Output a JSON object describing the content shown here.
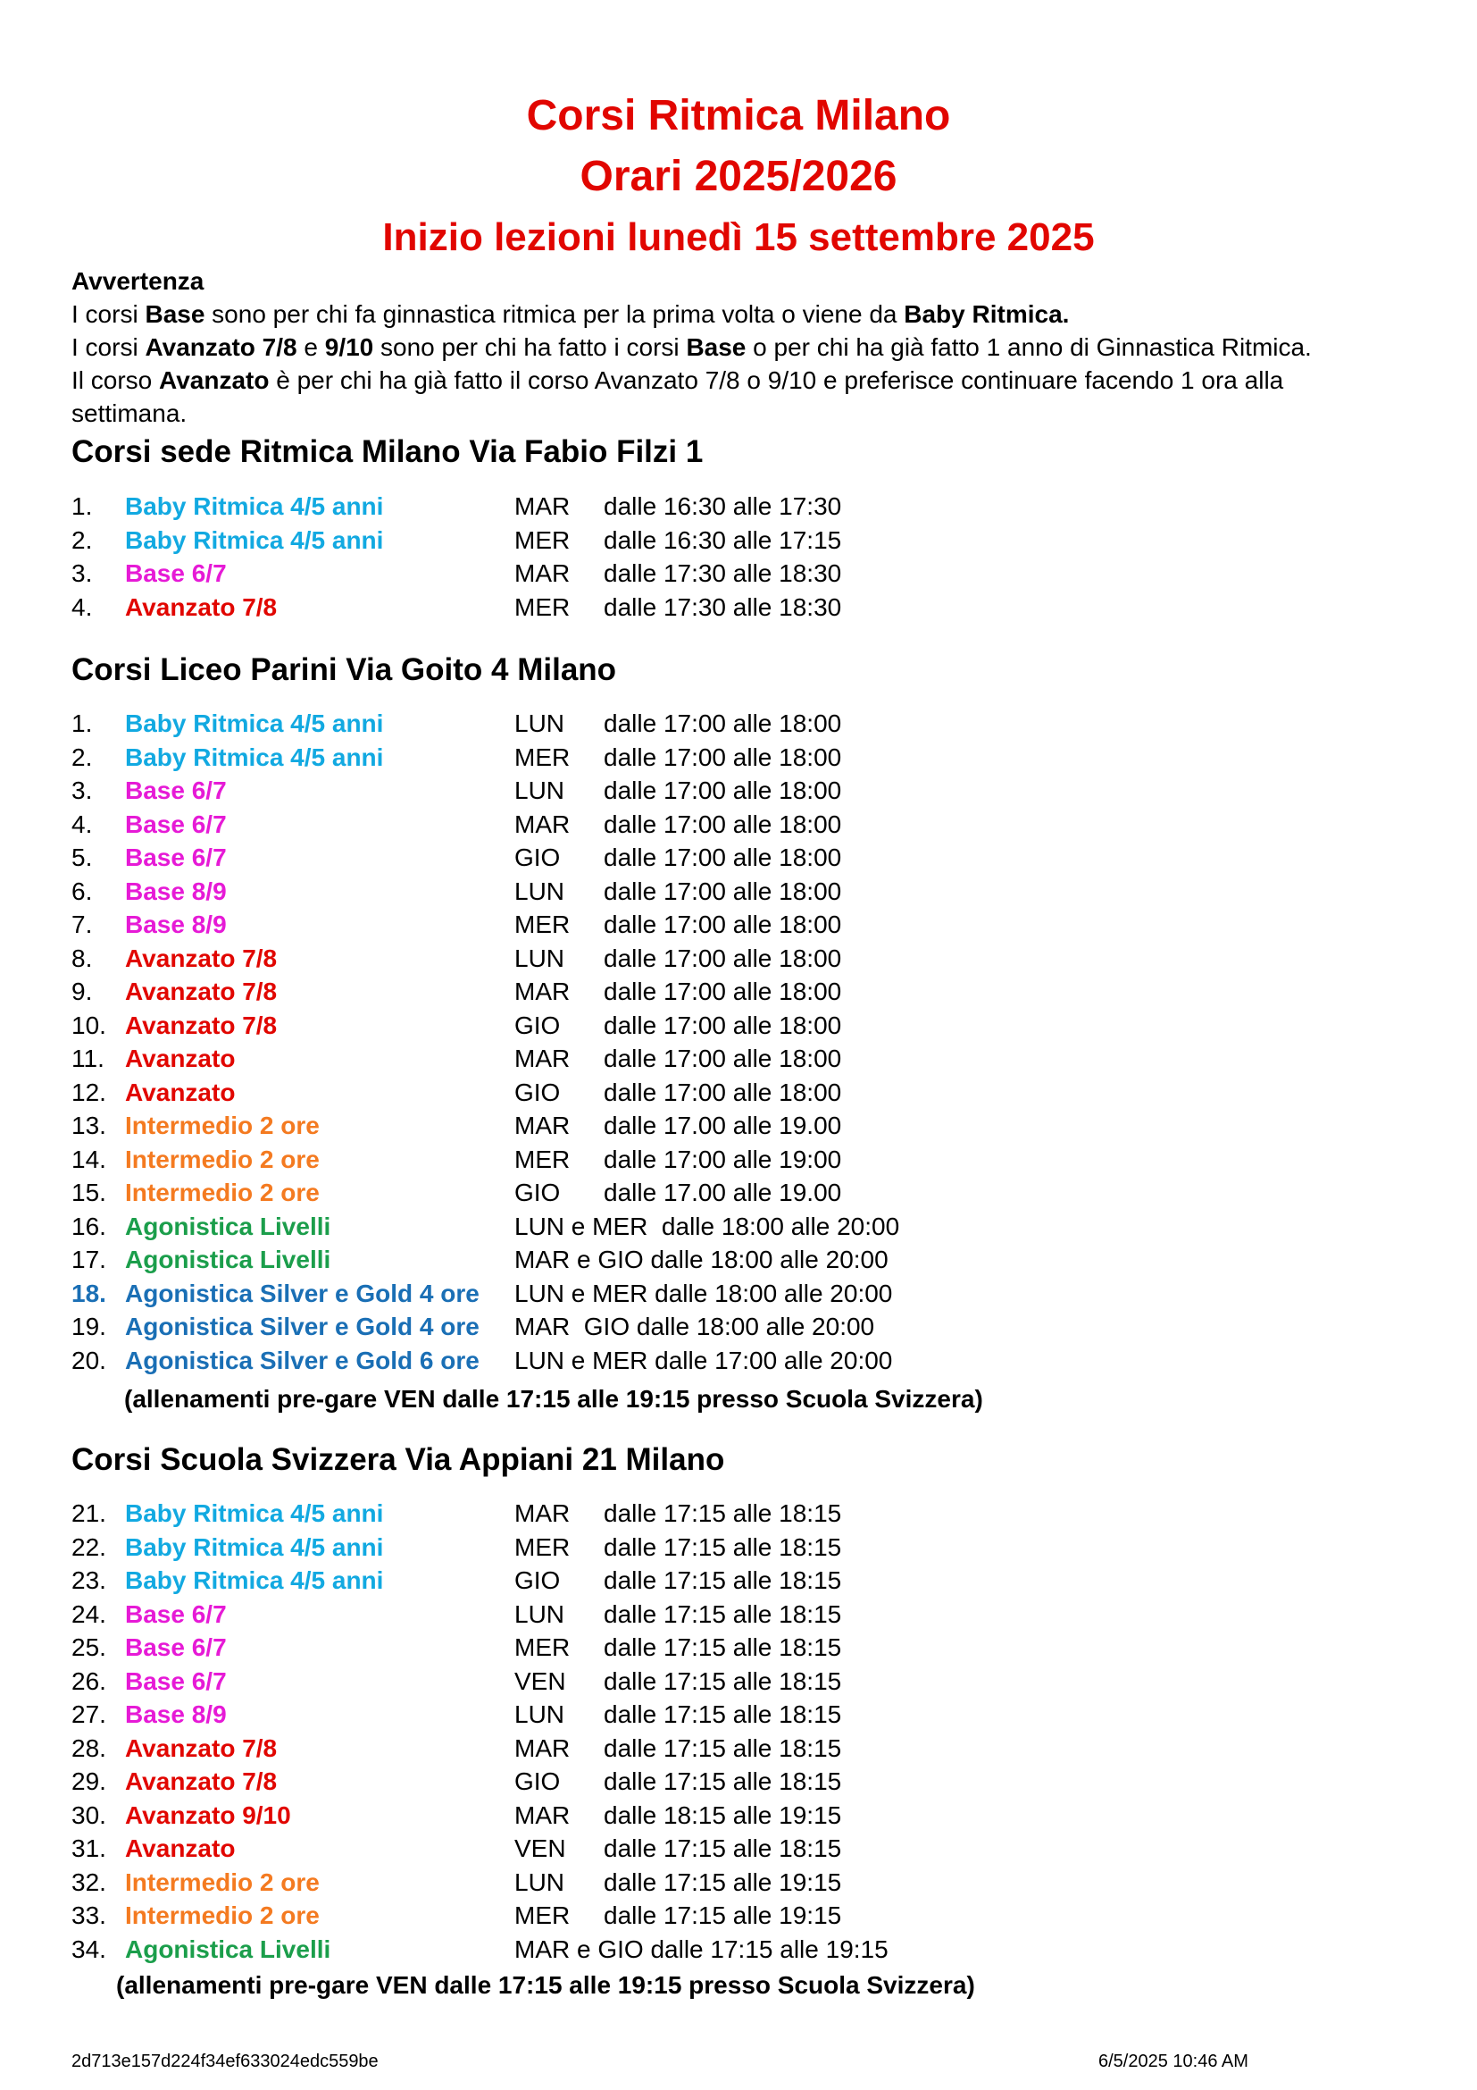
{
  "title": {
    "line1": "Corsi Ritmica Milano",
    "line2": "Orari 2025/2026",
    "line3": "Inizio lezioni lunedì 15 settembre 2025"
  },
  "notice": {
    "heading": "Avvertenza",
    "line1": {
      "a": "I corsi ",
      "b": "Base",
      "c": " sono per chi fa ginnastica ritmica per la prima volta o viene da ",
      "d": "Baby Ritmica."
    },
    "line2": {
      "a": "I corsi ",
      "b": "Avanzato 7/8",
      "c": " e ",
      "d": "9/10",
      "e": " sono per chi ha fatto i corsi ",
      "f": "Base",
      "g": " o per chi ha già fatto 1 anno di Ginnastica Ritmica."
    },
    "line3": {
      "a": "Il corso ",
      "b": "Avanzato",
      "c": " è per chi ha già fatto il corso Avanzato 7/8 o 9/10 e preferisce continuare facendo 1 ora alla settimana."
    }
  },
  "colors": {
    "title": "#e10600",
    "baby": "#12a9e1",
    "base": "#e61ad6",
    "avanzato": "#e10600",
    "intermedio": "#f47a20",
    "agonistica": "#1b9e4b",
    "silver": "#1a6fb5"
  },
  "sections": [
    {
      "title": "Corsi sede Ritmica Milano Via Fabio Filzi 1",
      "rows": [
        {
          "num": "1.",
          "course": "Baby Ritmica 4/5 anni",
          "color": "#12a9e1",
          "day": "MAR",
          "time": "dalle 16:30 alle 17:30"
        },
        {
          "num": "2.",
          "course": "Baby Ritmica 4/5 anni",
          "color": "#12a9e1",
          "day": "MER",
          "time": "dalle 16:30 alle 17:15"
        },
        {
          "num": "3.",
          "course": "Base 6/7",
          "color": "#e61ad6",
          "day": "MAR",
          "time": "dalle 17:30 alle 18:30"
        },
        {
          "num": "4.",
          "course": "Avanzato 7/8",
          "color": "#e10600",
          "day": "MER",
          "time": "dalle 17:30 alle 18:30"
        }
      ]
    },
    {
      "title": "Corsi Liceo Parini Via Goito 4 Milano",
      "rows": [
        {
          "num": "1.",
          "course": "Baby Ritmica 4/5 anni",
          "color": "#12a9e1",
          "day": "LUN",
          "time": "dalle 17:00 alle 18:00"
        },
        {
          "num": "2.",
          "course": "Baby Ritmica 4/5 anni",
          "color": "#12a9e1",
          "day": "MER",
          "time": "dalle 17:00 alle 18:00"
        },
        {
          "num": "3.",
          "course": "Base 6/7",
          "color": "#e61ad6",
          "day": "LUN",
          "time": "dalle 17:00 alle 18:00"
        },
        {
          "num": "4.",
          "course": "Base 6/7",
          "color": "#e61ad6",
          "day": "MAR",
          "time": "dalle 17:00 alle 18:00"
        },
        {
          "num": "5.",
          "course": "Base 6/7",
          "color": "#e61ad6",
          "day": "GIO",
          "time": "dalle 17:00 alle 18:00"
        },
        {
          "num": "6.",
          "course": "Base 8/9",
          "color": "#e61ad6",
          "day": "LUN",
          "time": "dalle 17:00 alle 18:00"
        },
        {
          "num": "7.",
          "course": "Base 8/9",
          "color": "#e61ad6",
          "day": "MER",
          "time": "dalle 17:00 alle 18:00"
        },
        {
          "num": "8.",
          "course": "Avanzato 7/8",
          "color": "#e10600",
          "day": "LUN",
          "time": "dalle 17:00 alle 18:00"
        },
        {
          "num": "9.",
          "course": "Avanzato 7/8",
          "color": "#e10600",
          "day": "MAR",
          "time": "dalle 17:00 alle 18:00"
        },
        {
          "num": "10.",
          "course": "Avanzato 7/8",
          "color": "#e10600",
          "day": "GIO",
          "time": "dalle 17:00 alle 18:00"
        },
        {
          "num": "11.",
          "course": "Avanzato",
          "color": "#e10600",
          "day": "MAR",
          "time": "dalle 17:00 alle 18:00"
        },
        {
          "num": "12.",
          "course": "Avanzato",
          "color": "#e10600",
          "day": "GIO",
          "time": "dalle 17:00 alle 18:00"
        },
        {
          "num": "13.",
          "course": "Intermedio 2 ore",
          "color": "#f47a20",
          "day": "MAR",
          "time": "dalle 17.00 alle 19.00"
        },
        {
          "num": "14.",
          "course": "Intermedio 2 ore",
          "color": "#f47a20",
          "day": "MER",
          "time": "dalle 17:00 alle 19:00"
        },
        {
          "num": "15.",
          "course": "Intermedio 2 ore",
          "color": "#f47a20",
          "day": "GIO",
          "time": "dalle 17.00 alle 19.00"
        },
        {
          "num": "16.",
          "course": "Agonistica Livelli",
          "color": "#1b9e4b",
          "full": "LUN e MER  dalle 18:00 alle 20:00"
        },
        {
          "num": "17.",
          "course": "Agonistica Livelli",
          "color": "#1b9e4b",
          "full": "MAR e GIO dalle 18:00 alle 20:00"
        },
        {
          "num": "18.",
          "course": "Agonistica Silver e Gold  4 ore",
          "color": "#1a6fb5",
          "numColor": "#1a6fb5",
          "full": "LUN e MER dalle 18:00 alle 20:00"
        },
        {
          "num": "19.",
          "course": "Agonistica Silver e Gold 4 ore",
          "color": "#1a6fb5",
          "full": "MAR  GIO dalle 18:00 alle 20:00"
        },
        {
          "num": "20.",
          "course": "Agonistica Silver e Gold 6 ore",
          "color": "#1a6fb5",
          "full": "LUN e MER dalle 17:00 alle 20:00"
        }
      ],
      "note": "(allenamenti pre-gare VEN dalle 17:15 alle 19:15 presso Scuola Svizzera)"
    },
    {
      "title": "Corsi Scuola Svizzera Via Appiani 21 Milano",
      "rows": [
        {
          "num": "21.",
          "course": "Baby Ritmica 4/5 anni",
          "color": "#12a9e1",
          "day": "MAR",
          "time": "dalle 17:15 alle 18:15"
        },
        {
          "num": "22.",
          "course": "Baby Ritmica 4/5 anni",
          "color": "#12a9e1",
          "day": "MER",
          "time": "dalle 17:15 alle 18:15"
        },
        {
          "num": "23.",
          "course": "Baby Ritmica 4/5 anni",
          "color": "#12a9e1",
          "day": "GIO",
          "time": "dalle 17:15 alle 18:15"
        },
        {
          "num": "24.",
          "course": "Base 6/7",
          "color": "#e61ad6",
          "day": "LUN",
          "time": "dalle 17:15 alle 18:15"
        },
        {
          "num": "25.",
          "course": "Base 6/7",
          "color": "#e61ad6",
          "day": "MER",
          "time": "dalle 17:15 alle 18:15"
        },
        {
          "num": "26.",
          "course": "Base 6/7",
          "color": "#e61ad6",
          "day": "VEN",
          "time": "dalle 17:15 alle 18:15"
        },
        {
          "num": "27.",
          "course": "Base 8/9",
          "color": "#e61ad6",
          "day": "LUN",
          "time": "dalle 17:15 alle 18:15"
        },
        {
          "num": "28.",
          "course": "Avanzato 7/8",
          "color": "#e10600",
          "day": "MAR",
          "time": "dalle 17:15 alle 18:15"
        },
        {
          "num": "29.",
          "course": "Avanzato 7/8",
          "color": "#e10600",
          "day": "GIO",
          "time": "dalle 17:15 alle 18:15"
        },
        {
          "num": "30.",
          "course": "Avanzato 9/10",
          "color": "#e10600",
          "day": "MAR",
          "time": "dalle 18:15 alle 19:15"
        },
        {
          "num": "31.",
          "course": "Avanzato",
          "color": "#e10600",
          "day": "VEN",
          "time": "dalle 17:15 alle 18:15"
        },
        {
          "num": "32.",
          "course": "Intermedio 2 ore",
          "color": "#f47a20",
          "day": "LUN",
          "time": "dalle 17:15 alle 19:15"
        },
        {
          "num": "33.",
          "course": "Intermedio 2 ore",
          "color": "#f47a20",
          "day": "MER",
          "time": "dalle 17:15 alle 19:15"
        },
        {
          "num": "34.",
          "course": "Agonistica Livelli",
          "color": "#1b9e4b",
          "full": "MAR e GIO dalle 17:15 alle 19:15"
        }
      ],
      "note": "(allenamenti pre-gare VEN dalle 17:15 alle 19:15 presso Scuola Svizzera)"
    }
  ],
  "footer": {
    "hash": "2d713e157d224f34ef633024edc559be",
    "datetime": "6/5/2025 10:46 AM"
  }
}
